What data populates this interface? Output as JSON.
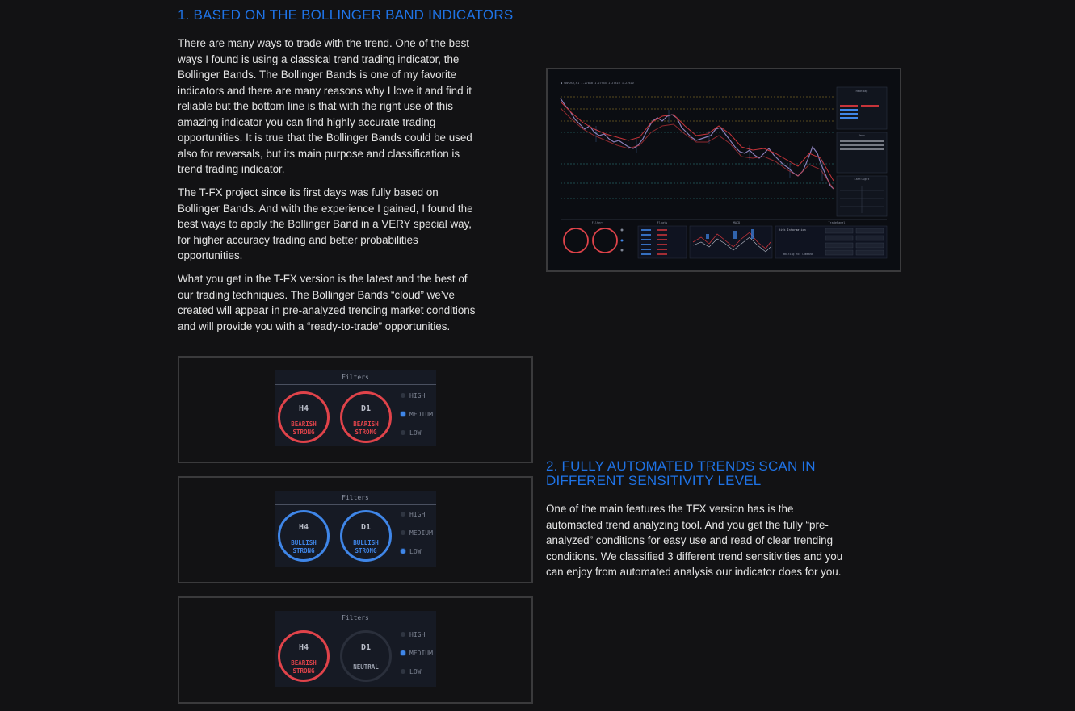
{
  "section1": {
    "title": "1. BASED ON THE BOLLINGER BAND INDICATORS",
    "paragraphs": [
      "There are many ways to trade with the trend. One of the best ways I found is using a classical trend trading indicator, the Bollinger Bands. The Bollinger Bands is one of my favorite indicators and there are many reasons why I love it and find it reliable but the bottom line is that with the right use of this amazing indicator you can find highly accurate trading opportunities. It is true that the Bollinger Bands could be used also for reversals, but its main purpose and classification is trend trading indicator.",
      "The T-FX project since its first days was fully based on Bollinger Bands. And with the experience I gained, I found the best ways to apply the Bollinger Band in a VERY special way, for higher accuracy trading and better probabilities opportunities.",
      "What you get in the T-FX version is the latest and the best of our trading techniques. The Bollinger Bands “cloud” we’ve created will appear in pre-analyzed trending market conditions and will provide you with a “ready-to-trade” opportunities."
    ]
  },
  "section2": {
    "title": "2. FULLY AUTOMATED TRENDS SCAN IN DIFFERENT SENSITIVITY LEVEL",
    "paragraph": "One of the main features the TFX version has is the automacted trend analyzing tool. And you get the fully “pre-analyzed” conditions for easy use and read of clear trending conditions. We classified 3 different trend sensitivities and you can enjoy from automated analysis our indicator does for you."
  },
  "colors": {
    "accent": "#1f73e6",
    "bearish": "#e0434a",
    "bullish": "#3f86e8",
    "background": "#121214"
  },
  "screenshot": {
    "panels": [
      "Filters",
      "Floats",
      "MACD",
      "TradePanel"
    ],
    "side_panels": [
      "Heatmap",
      "News",
      "Lastlight"
    ],
    "risk_title": "Risk Information",
    "status": "Waiting for Command"
  },
  "filter_panels": [
    {
      "title": "Filters",
      "rings": [
        {
          "timeframe": "H4",
          "state_line1": "BEARISH",
          "state_line2": "STRONG",
          "tone": "bear"
        },
        {
          "timeframe": "D1",
          "state_line1": "BEARISH",
          "state_line2": "STRONG",
          "tone": "bear"
        }
      ],
      "options": [
        "HIGH",
        "MEDIUM",
        "LOW"
      ],
      "selected": "MEDIUM"
    },
    {
      "title": "Filters",
      "rings": [
        {
          "timeframe": "H4",
          "state_line1": "BULLISH",
          "state_line2": "STRONG",
          "tone": "bull"
        },
        {
          "timeframe": "D1",
          "state_line1": "BULLISH",
          "state_line2": "STRONG",
          "tone": "bull"
        }
      ],
      "options": [
        "HIGH",
        "MEDIUM",
        "LOW"
      ],
      "selected": "LOW"
    },
    {
      "title": "Filters",
      "rings": [
        {
          "timeframe": "H4",
          "state_line1": "BEARISH",
          "state_line2": "STRONG",
          "tone": "bear"
        },
        {
          "timeframe": "D1",
          "state_line1": "",
          "state_line2": "NEUTRAL",
          "tone": "neutral"
        }
      ],
      "options": [
        "HIGH",
        "MEDIUM",
        "LOW"
      ],
      "selected": "MEDIUM"
    }
  ]
}
